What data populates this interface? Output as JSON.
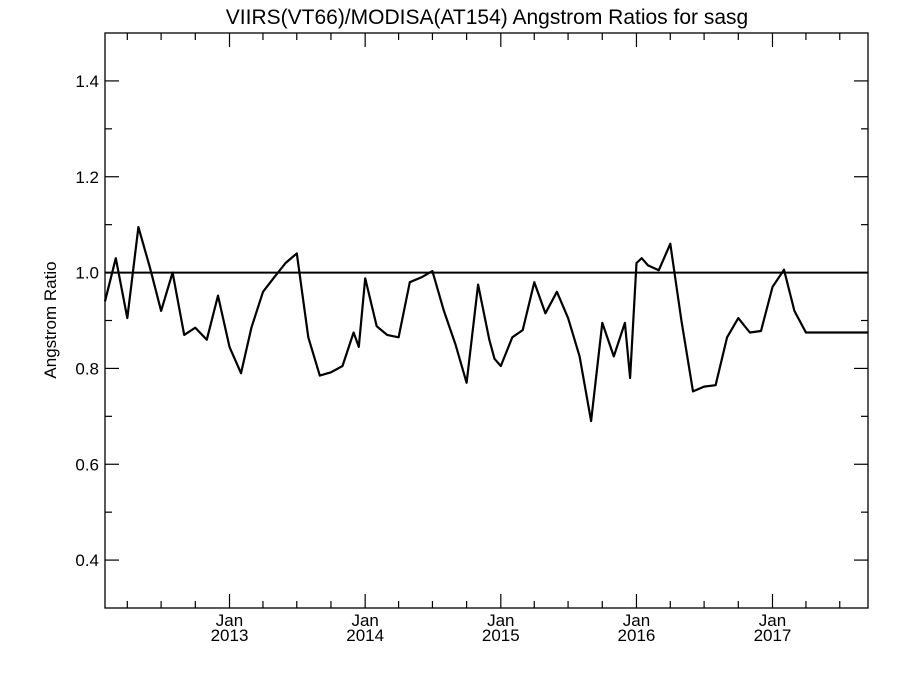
{
  "chart_data": {
    "type": "line",
    "title": "VIIRS(VT66)/MODISA(AT154)  Angstrom Ratios for sasg",
    "xlabel": "",
    "ylabel": "Angstrom Ratio",
    "xlim": [
      "2012-02-01",
      "2017-09-15"
    ],
    "ylim": [
      0.3,
      1.5
    ],
    "yticks": [
      0.4,
      0.6,
      0.8,
      1.0,
      1.2,
      1.4
    ],
    "ytick_labels": [
      "0.4",
      "0.6",
      "0.8",
      "1.0",
      "1.2",
      "1.4"
    ],
    "xticks": [
      {
        "date": "2013-01-01",
        "month": "Jan",
        "year": "2013"
      },
      {
        "date": "2014-01-01",
        "month": "Jan",
        "year": "2014"
      },
      {
        "date": "2015-01-01",
        "month": "Jan",
        "year": "2015"
      },
      {
        "date": "2016-01-01",
        "month": "Jan",
        "year": "2016"
      },
      {
        "date": "2017-01-01",
        "month": "Jan",
        "year": "2017"
      }
    ],
    "reference_line": 1.0,
    "grid": false,
    "series": [
      {
        "x": [
          "2012-02-01",
          "2012-03-01",
          "2012-04-01",
          "2012-05-01",
          "2012-06-01",
          "2012-07-01",
          "2012-08-01",
          "2012-09-01",
          "2012-10-01",
          "2012-11-01",
          "2012-12-01",
          "2013-01-01",
          "2013-02-01",
          "2013-03-01",
          "2013-04-01",
          "2013-05-01",
          "2013-06-01",
          "2013-07-01",
          "2013-08-01",
          "2013-09-01",
          "2013-10-01",
          "2013-11-01",
          "2013-12-01",
          "2013-12-15",
          "2014-01-01",
          "2014-02-01",
          "2014-03-01",
          "2014-04-01",
          "2014-05-01",
          "2014-06-01",
          "2014-07-01",
          "2014-08-01",
          "2014-09-01",
          "2014-10-01",
          "2014-11-01",
          "2014-12-01",
          "2014-12-15",
          "2015-01-01",
          "2015-02-01",
          "2015-03-01",
          "2015-04-01",
          "2015-05-01",
          "2015-06-01",
          "2015-07-01",
          "2015-08-01",
          "2015-09-01",
          "2015-10-01",
          "2015-11-01",
          "2015-12-01",
          "2015-12-15",
          "2016-01-01",
          "2016-01-15",
          "2016-02-01",
          "2016-03-01",
          "2016-04-01",
          "2016-05-01",
          "2016-06-01",
          "2016-07-01",
          "2016-08-01",
          "2016-09-01",
          "2016-10-01",
          "2016-11-01",
          "2016-12-01",
          "2017-01-01",
          "2017-02-01",
          "2017-03-01",
          "2017-04-01",
          "2017-05-01",
          "2017-06-01",
          "2017-07-01",
          "2017-08-01",
          "2017-09-01",
          "2017-09-15"
        ],
        "y": [
          0.94,
          1.03,
          0.905,
          1.095,
          1.01,
          0.92,
          1.0,
          0.87,
          0.885,
          0.86,
          0.952,
          0.845,
          0.79,
          0.885,
          0.96,
          0.99,
          1.02,
          1.04,
          0.865,
          0.785,
          0.792,
          0.805,
          0.875,
          0.845,
          0.988,
          0.888,
          0.87,
          0.865,
          0.98,
          0.99,
          1.003,
          0.92,
          0.85,
          0.77,
          0.975,
          0.86,
          0.82,
          0.805,
          0.865,
          0.88,
          0.98,
          0.915,
          0.96,
          0.905,
          0.825,
          0.69,
          0.895,
          0.825,
          0.895,
          0.78,
          1.02,
          1.03,
          1.015,
          1.005,
          1.06,
          0.9,
          0.752,
          0.762,
          0.765,
          0.865,
          0.905,
          0.875,
          0.878,
          0.97,
          1.006,
          0.92,
          0.875,
          0.875,
          0.875,
          0.875,
          0.875,
          0.875,
          0.875
        ]
      }
    ]
  }
}
